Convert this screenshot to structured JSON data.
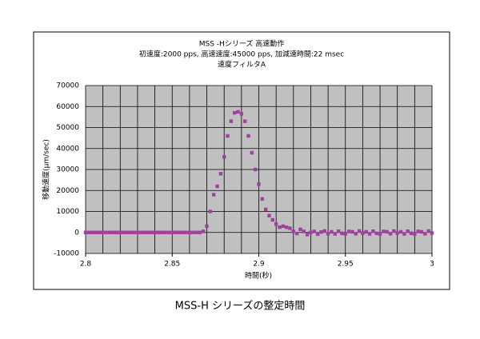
{
  "chart_data": {
    "type": "scatter",
    "title_lines": [
      "MSS -Hシリーズ 高速動作",
      "初速度:2000 pps, 高速速度:45000 pps, 加減速時間:22 msec",
      "速度フィルタA"
    ],
    "xlabel": "時間(秒)",
    "ylabel": "移動速度(μm/sec)",
    "caption": "MSS-H シリーズの整定時間",
    "xlim": [
      2.8,
      3
    ],
    "xticks": [
      2.8,
      2.85,
      2.9,
      2.95,
      3
    ],
    "xgrid": [
      2.8,
      2.81,
      2.82,
      2.83,
      2.84,
      2.85,
      2.86,
      2.87,
      2.88,
      2.89,
      2.9,
      2.91,
      2.92,
      2.93,
      2.94,
      2.95,
      2.96,
      2.97,
      2.98,
      2.99,
      3
    ],
    "ylim": [
      -10000,
      70000
    ],
    "yticks": [
      -10000,
      0,
      10000,
      20000,
      30000,
      40000,
      50000,
      60000,
      70000
    ],
    "grid": true,
    "x": [
      2.8,
      2.802,
      2.804,
      2.806,
      2.808,
      2.81,
      2.812,
      2.814,
      2.816,
      2.818,
      2.82,
      2.822,
      2.824,
      2.826,
      2.828,
      2.83,
      2.832,
      2.834,
      2.836,
      2.838,
      2.84,
      2.842,
      2.844,
      2.846,
      2.848,
      2.85,
      2.852,
      2.854,
      2.856,
      2.858,
      2.86,
      2.862,
      2.864,
      2.866,
      2.868,
      2.87,
      2.872,
      2.874,
      2.876,
      2.878,
      2.88,
      2.882,
      2.884,
      2.886,
      2.888,
      2.89,
      2.892,
      2.894,
      2.896,
      2.898,
      2.9,
      2.902,
      2.904,
      2.906,
      2.908,
      2.91,
      2.912,
      2.914,
      2.916,
      2.918,
      2.92,
      2.922,
      2.924,
      2.926,
      2.928,
      2.93,
      2.932,
      2.934,
      2.936,
      2.938,
      2.94,
      2.942,
      2.944,
      2.946,
      2.948,
      2.95,
      2.952,
      2.954,
      2.956,
      2.958,
      2.96,
      2.962,
      2.964,
      2.966,
      2.968,
      2.97,
      2.972,
      2.974,
      2.976,
      2.978,
      2.98,
      2.982,
      2.984,
      2.986,
      2.988,
      2.99,
      2.992,
      2.994,
      2.996,
      2.998,
      3
    ],
    "series": [
      {
        "color": "#a040a0",
        "values": [
          0,
          0,
          0,
          0,
          0,
          0,
          0,
          0,
          0,
          0,
          0,
          0,
          0,
          0,
          0,
          0,
          0,
          0,
          0,
          0,
          0,
          0,
          0,
          0,
          0,
          0,
          0,
          0,
          0,
          0,
          0,
          0,
          0,
          0,
          500,
          3000,
          10000,
          18000,
          22000,
          28000,
          36000,
          46000,
          53000,
          57000,
          57500,
          56500,
          53000,
          46000,
          38000,
          30000,
          23000,
          16000,
          11000,
          8000,
          6000,
          4000,
          2500,
          3000,
          2500,
          2000,
          500,
          -500,
          1500,
          500,
          -1000,
          0,
          500,
          -800,
          200,
          700,
          -600,
          300,
          -700,
          600,
          -400,
          -700,
          500,
          300,
          -600,
          700,
          -300,
          300,
          -700,
          600,
          -400,
          -700,
          500,
          300,
          -600,
          700,
          -300,
          300,
          -700,
          600,
          -400,
          -700,
          500,
          300,
          -600,
          700,
          -300
        ]
      }
    ]
  }
}
